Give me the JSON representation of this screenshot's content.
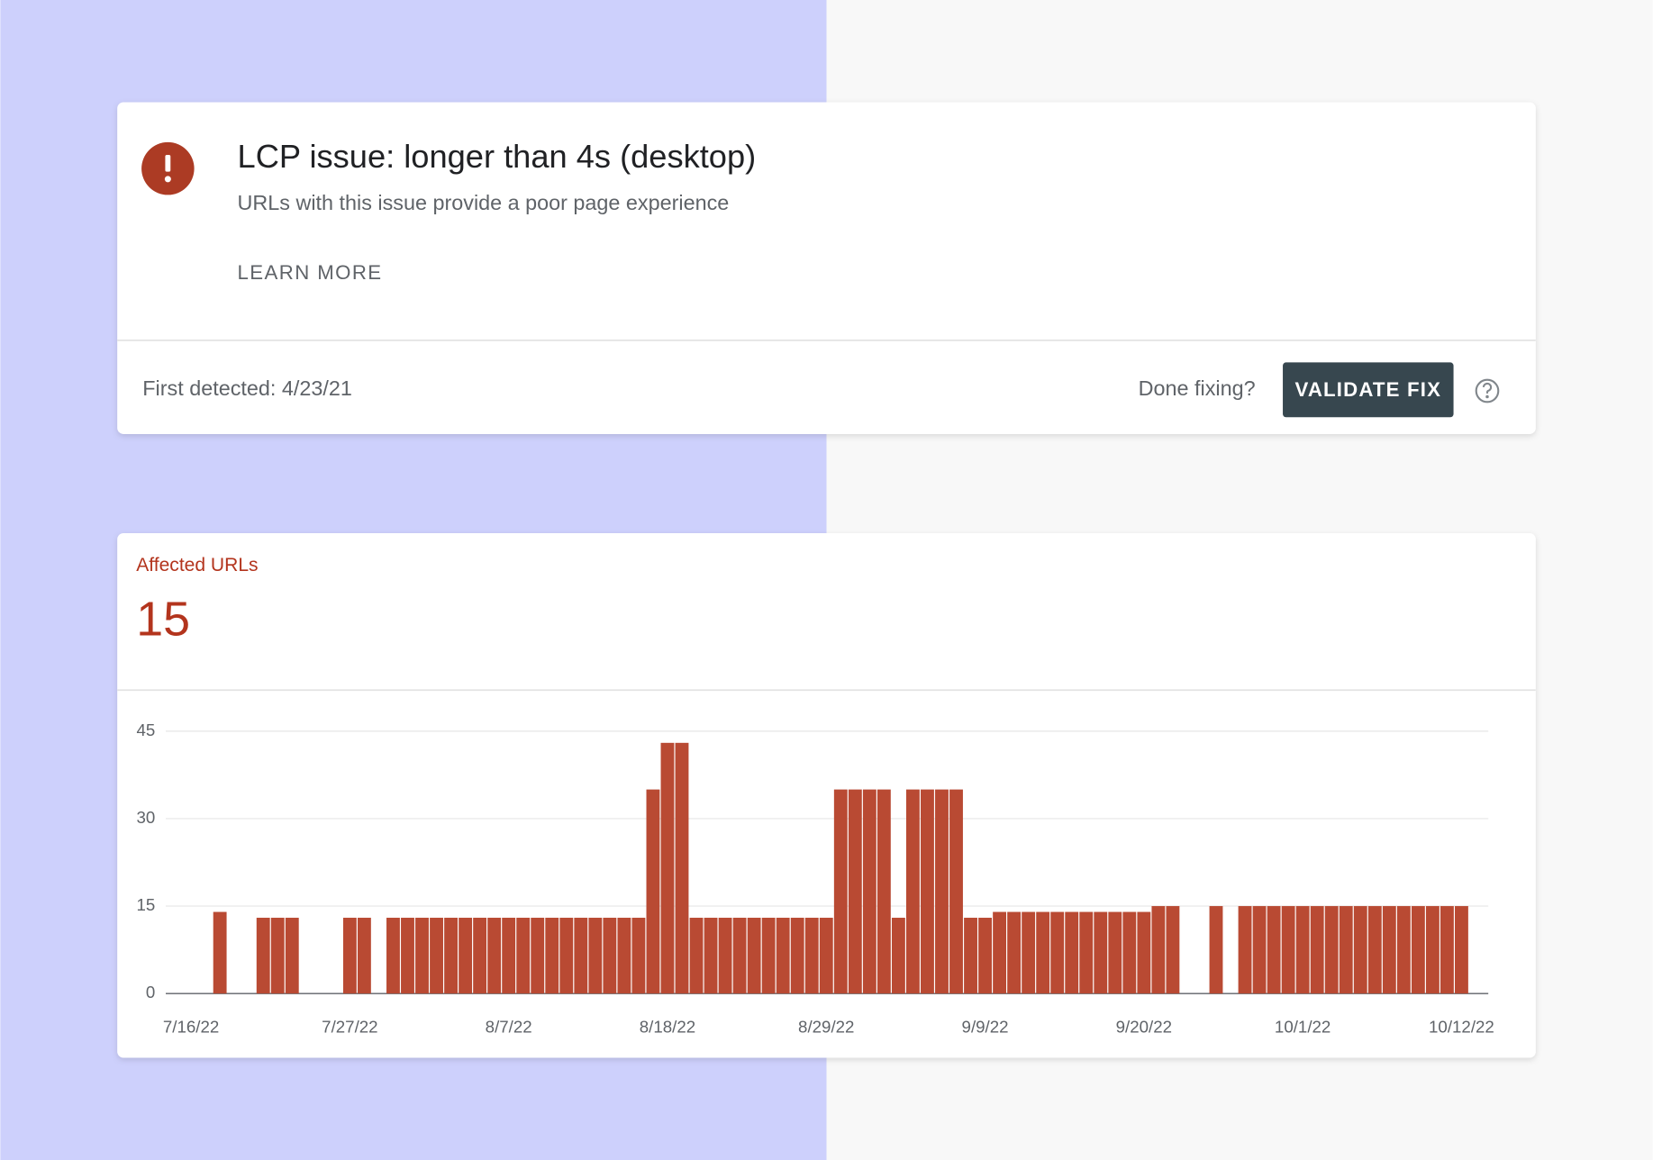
{
  "issue": {
    "title": "LCP issue: longer than 4s (desktop)",
    "subtitle": "URLs with this issue provide a poor page experience",
    "learn_more": "LEARN MORE",
    "first_detected": "First detected: 4/23/21",
    "done_fixing": "Done fixing?",
    "validate_button": "VALIDATE FIX"
  },
  "summary": {
    "label": "Affected URLs",
    "value": 15
  },
  "chart_data": {
    "type": "bar",
    "categories": [
      "7/16/22",
      null,
      null,
      null,
      null,
      null,
      null,
      null,
      null,
      null,
      null,
      "7/27/22",
      null,
      null,
      null,
      null,
      null,
      null,
      null,
      null,
      null,
      null,
      "8/7/22",
      null,
      null,
      null,
      null,
      null,
      null,
      null,
      null,
      null,
      null,
      "8/18/22",
      null,
      null,
      null,
      null,
      null,
      null,
      null,
      null,
      null,
      null,
      "8/29/22",
      null,
      null,
      null,
      null,
      null,
      null,
      null,
      null,
      null,
      null,
      "9/9/22",
      null,
      null,
      null,
      null,
      null,
      null,
      null,
      null,
      null,
      null,
      "9/20/22",
      null,
      null,
      null,
      null,
      null,
      null,
      null,
      null,
      null,
      null,
      "10/1/22",
      null,
      null,
      null,
      null,
      null,
      null,
      null,
      null,
      null,
      null,
      "10/12/22"
    ],
    "values": [
      null,
      null,
      14,
      null,
      null,
      13,
      13,
      13,
      null,
      null,
      null,
      13,
      13,
      null,
      13,
      13,
      13,
      13,
      13,
      13,
      13,
      13,
      13,
      13,
      13,
      13,
      13,
      13,
      13,
      13,
      13,
      13,
      35,
      43,
      43,
      13,
      13,
      13,
      13,
      13,
      13,
      13,
      13,
      13,
      13,
      35,
      35,
      35,
      35,
      13,
      35,
      35,
      35,
      35,
      13,
      13,
      14,
      14,
      14,
      14,
      14,
      14,
      14,
      14,
      14,
      14,
      14,
      15,
      15,
      null,
      null,
      15,
      null,
      15,
      15,
      15,
      15,
      15,
      15,
      15,
      15,
      15,
      15,
      15,
      15,
      15,
      15,
      15,
      15
    ],
    "color": "#b94a33",
    "ylim": [
      0,
      45
    ],
    "yticks": [
      0,
      15,
      30,
      45
    ],
    "grid": true
  }
}
